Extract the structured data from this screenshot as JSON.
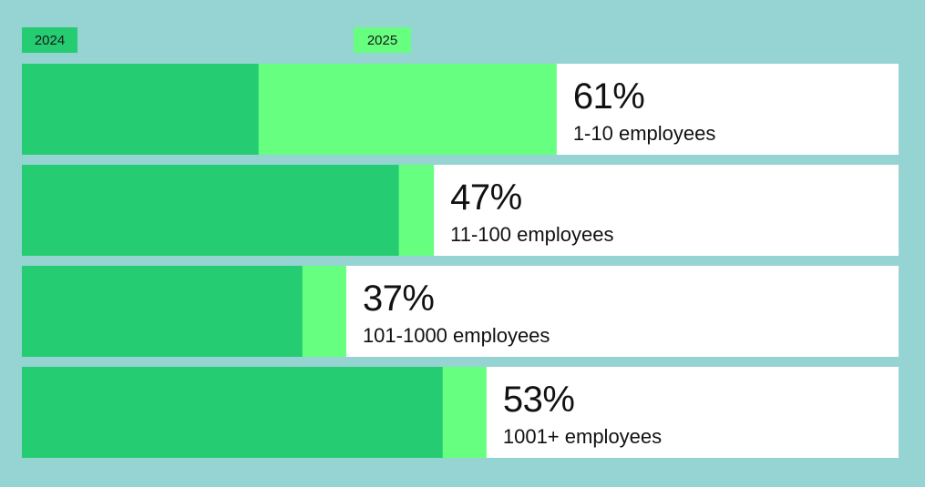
{
  "chart_data": {
    "type": "bar",
    "orientation": "horizontal",
    "stacked": true,
    "legend": [
      {
        "name": "2024",
        "color": "#25cc72"
      },
      {
        "name": "2025",
        "color": "#66ff80"
      }
    ],
    "categories": [
      "1-10 employees",
      "11-100 employees",
      "101-1000 employees",
      "1001+ employees"
    ],
    "labels": [
      "61%",
      "47%",
      "37%",
      "53%"
    ],
    "values_2025": [
      61,
      47,
      37,
      53
    ],
    "values_2024": [
      27,
      43,
      32,
      48
    ],
    "xlim": [
      0,
      100
    ]
  }
}
